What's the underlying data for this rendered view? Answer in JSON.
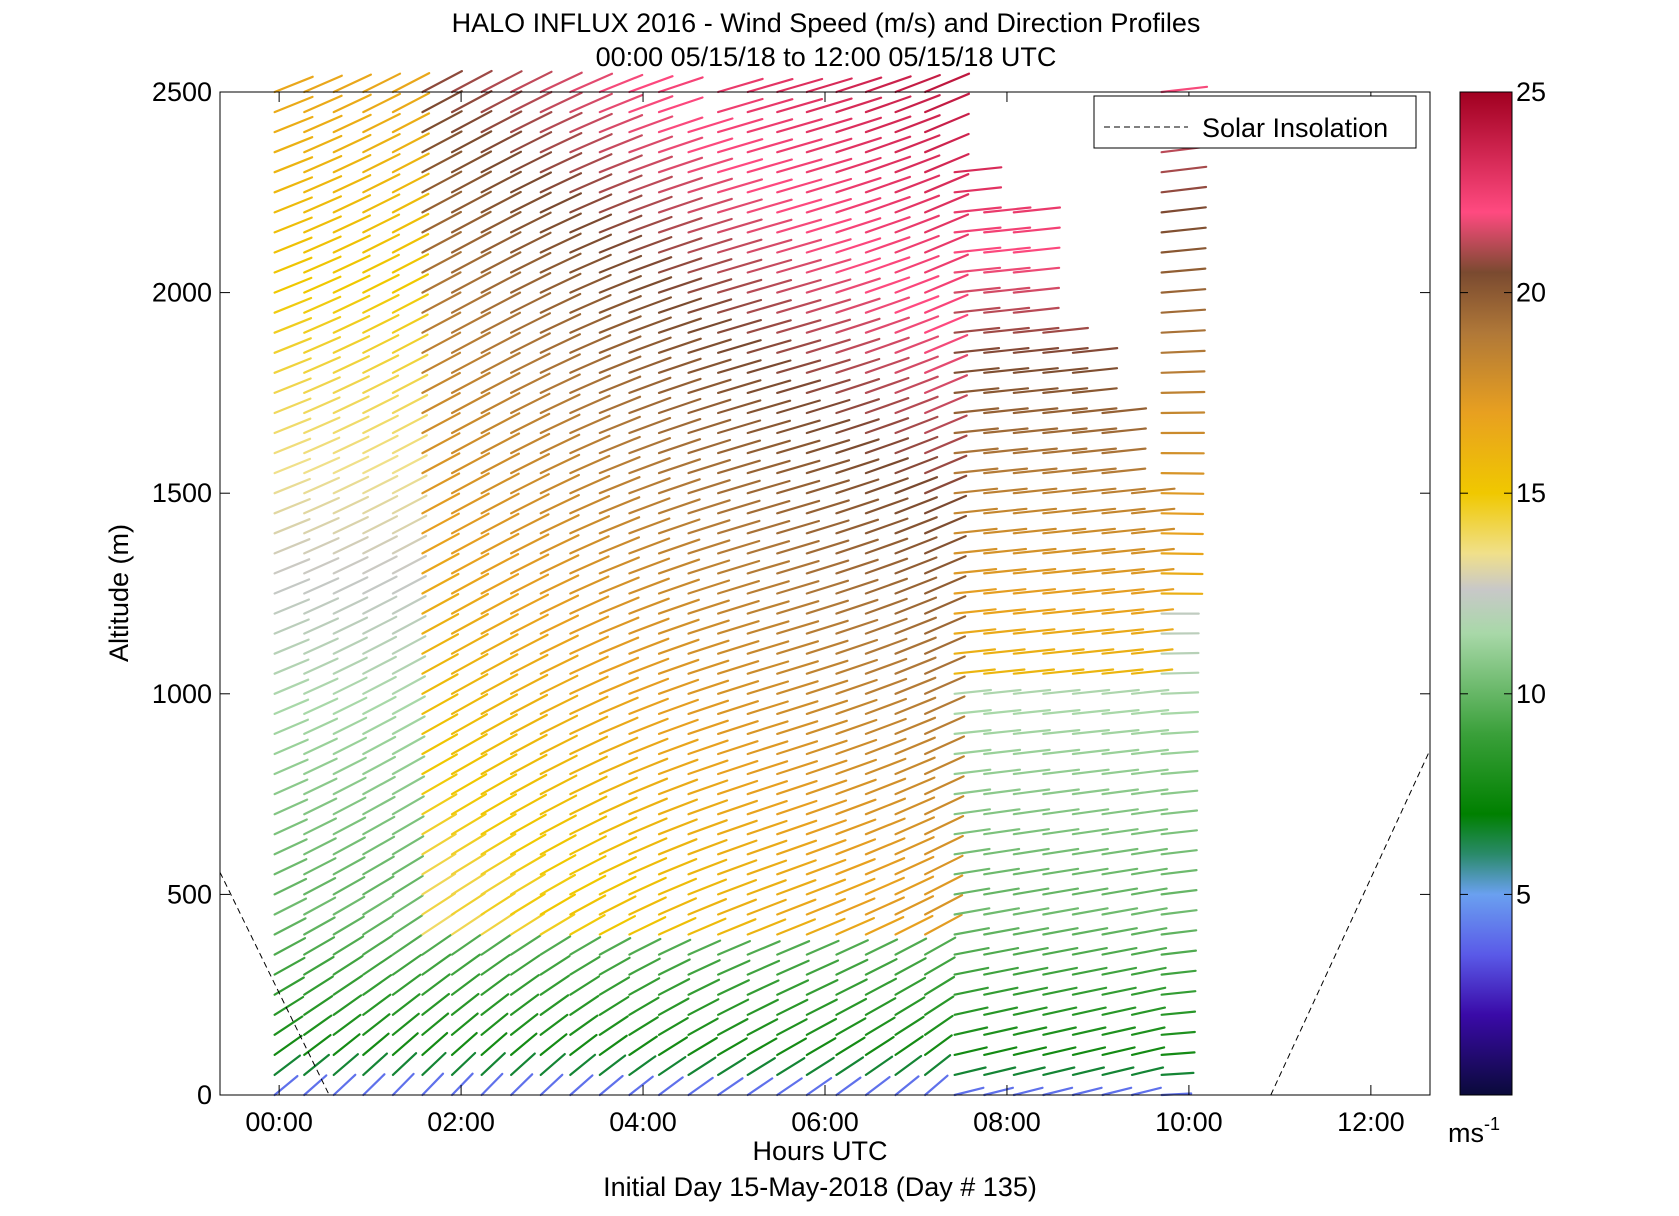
{
  "chart_data": {
    "type": "vector-field",
    "title": "HALO INFLUX 2016 - Wind Speed (m/s) and Direction Profiles",
    "subtitle": "00:00 05/15/18 to 12:00 05/15/18  UTC",
    "xlabel": "Hours UTC",
    "xlabel2": "Initial Day 15-May-2018 (Day # 135)",
    "ylabel": "Altitude (m)",
    "xlim": [
      -0.65,
      12.65
    ],
    "ylim": [
      0,
      2500
    ],
    "x_ticks": [
      0,
      2,
      4,
      6,
      8,
      10,
      12
    ],
    "x_tick_labels": [
      "00:00",
      "02:00",
      "04:00",
      "06:00",
      "08:00",
      "10:00",
      "12:00"
    ],
    "y_ticks": [
      0,
      500,
      1000,
      1500,
      2000,
      2500
    ],
    "y_tick_labels": [
      "0",
      "500",
      "1000",
      "1500",
      "2000",
      "2500"
    ],
    "legend": {
      "position": "top-right",
      "entries": [
        "Solar Insolation"
      ]
    },
    "colorbar": {
      "unit": "ms",
      "unit_exponent": "-1",
      "range": [
        0,
        25
      ],
      "ticks": [
        5,
        10,
        15,
        20,
        25
      ],
      "tick_labels": [
        "5",
        "10",
        "15",
        "20",
        "25"
      ],
      "stops": [
        {
          "v": 0,
          "c": "#0a0a3a"
        },
        {
          "v": 2,
          "c": "#3a0aa8"
        },
        {
          "v": 3.5,
          "c": "#5a5ae8"
        },
        {
          "v": 5,
          "c": "#6aa0f0"
        },
        {
          "v": 6,
          "c": "#2a8a6a"
        },
        {
          "v": 7,
          "c": "#008000"
        },
        {
          "v": 9,
          "c": "#3aa03a"
        },
        {
          "v": 11.5,
          "c": "#a8d8a8"
        },
        {
          "v": 12.6,
          "c": "#c8c8c8"
        },
        {
          "v": 13.5,
          "c": "#f0e08a"
        },
        {
          "v": 15,
          "c": "#f0c800"
        },
        {
          "v": 17,
          "c": "#e8a020"
        },
        {
          "v": 19,
          "c": "#b07838"
        },
        {
          "v": 20.5,
          "c": "#7a4a30"
        },
        {
          "v": 22,
          "c": "#ff4a80"
        },
        {
          "v": 25,
          "c": "#a00020"
        }
      ]
    },
    "solar_insolation": [
      {
        "x": -0.65,
        "y": 555
      },
      {
        "x": 0.55,
        "y": 0
      },
      {
        "x": 10.9,
        "y": 0
      },
      {
        "x": 12.65,
        "y": 860
      }
    ],
    "wind_field": {
      "time_start": -0.05,
      "time_step": 0.325,
      "time_count": 31,
      "alt_step": 50,
      "notes_gap": "no data above profile top"
    }
  }
}
